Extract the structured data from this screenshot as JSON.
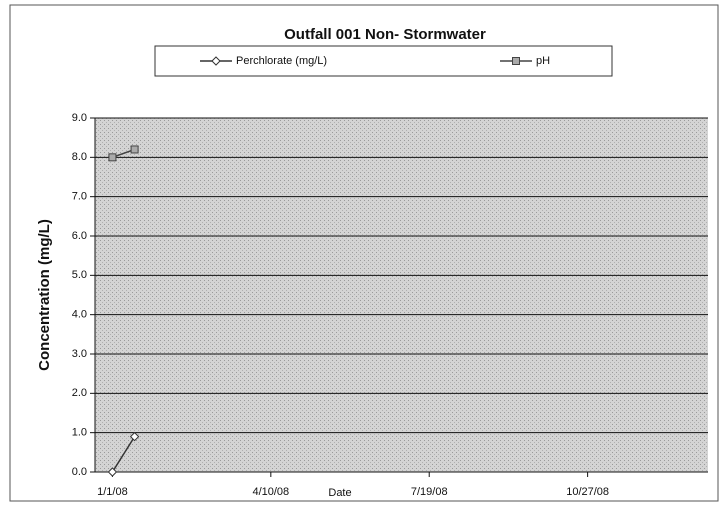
{
  "chart_data": {
    "type": "line",
    "title": "Outfall 001 Non- Stormwater",
    "x_label": "Date",
    "y_label": "Concentration (mg/L)",
    "x": [
      "2008-01-01",
      "2008-01-15"
    ],
    "series": [
      {
        "name": "Perchlorate (mg/L)",
        "color": "#333333",
        "marker": "diamond",
        "values": [
          0.0,
          0.9
        ]
      },
      {
        "name": "pH",
        "color": "#444444",
        "marker": "square",
        "values": [
          8.0,
          8.2
        ]
      }
    ],
    "xlim": [
      "2007-12-21",
      "2009-01-11"
    ],
    "xticks": [
      {
        "value": "2008-01-01",
        "label": "1/1/08"
      },
      {
        "value": "2008-04-10",
        "label": "4/10/08"
      },
      {
        "value": "2008-07-19",
        "label": "7/19/08"
      },
      {
        "value": "2008-10-27",
        "label": "10/27/08"
      }
    ],
    "ylim": [
      0,
      9
    ],
    "yticks": [
      {
        "value": 0,
        "label": "0.0"
      },
      {
        "value": 1,
        "label": "1.0"
      },
      {
        "value": 2,
        "label": "2.0"
      },
      {
        "value": 3,
        "label": "3.0"
      },
      {
        "value": 4,
        "label": "4.0"
      },
      {
        "value": 5,
        "label": "5.0"
      },
      {
        "value": 6,
        "label": "6.0"
      },
      {
        "value": 7,
        "label": "7.0"
      },
      {
        "value": 8,
        "label": "8.0"
      },
      {
        "value": 9,
        "label": "9.0"
      }
    ],
    "grid": true,
    "legend": "top"
  }
}
